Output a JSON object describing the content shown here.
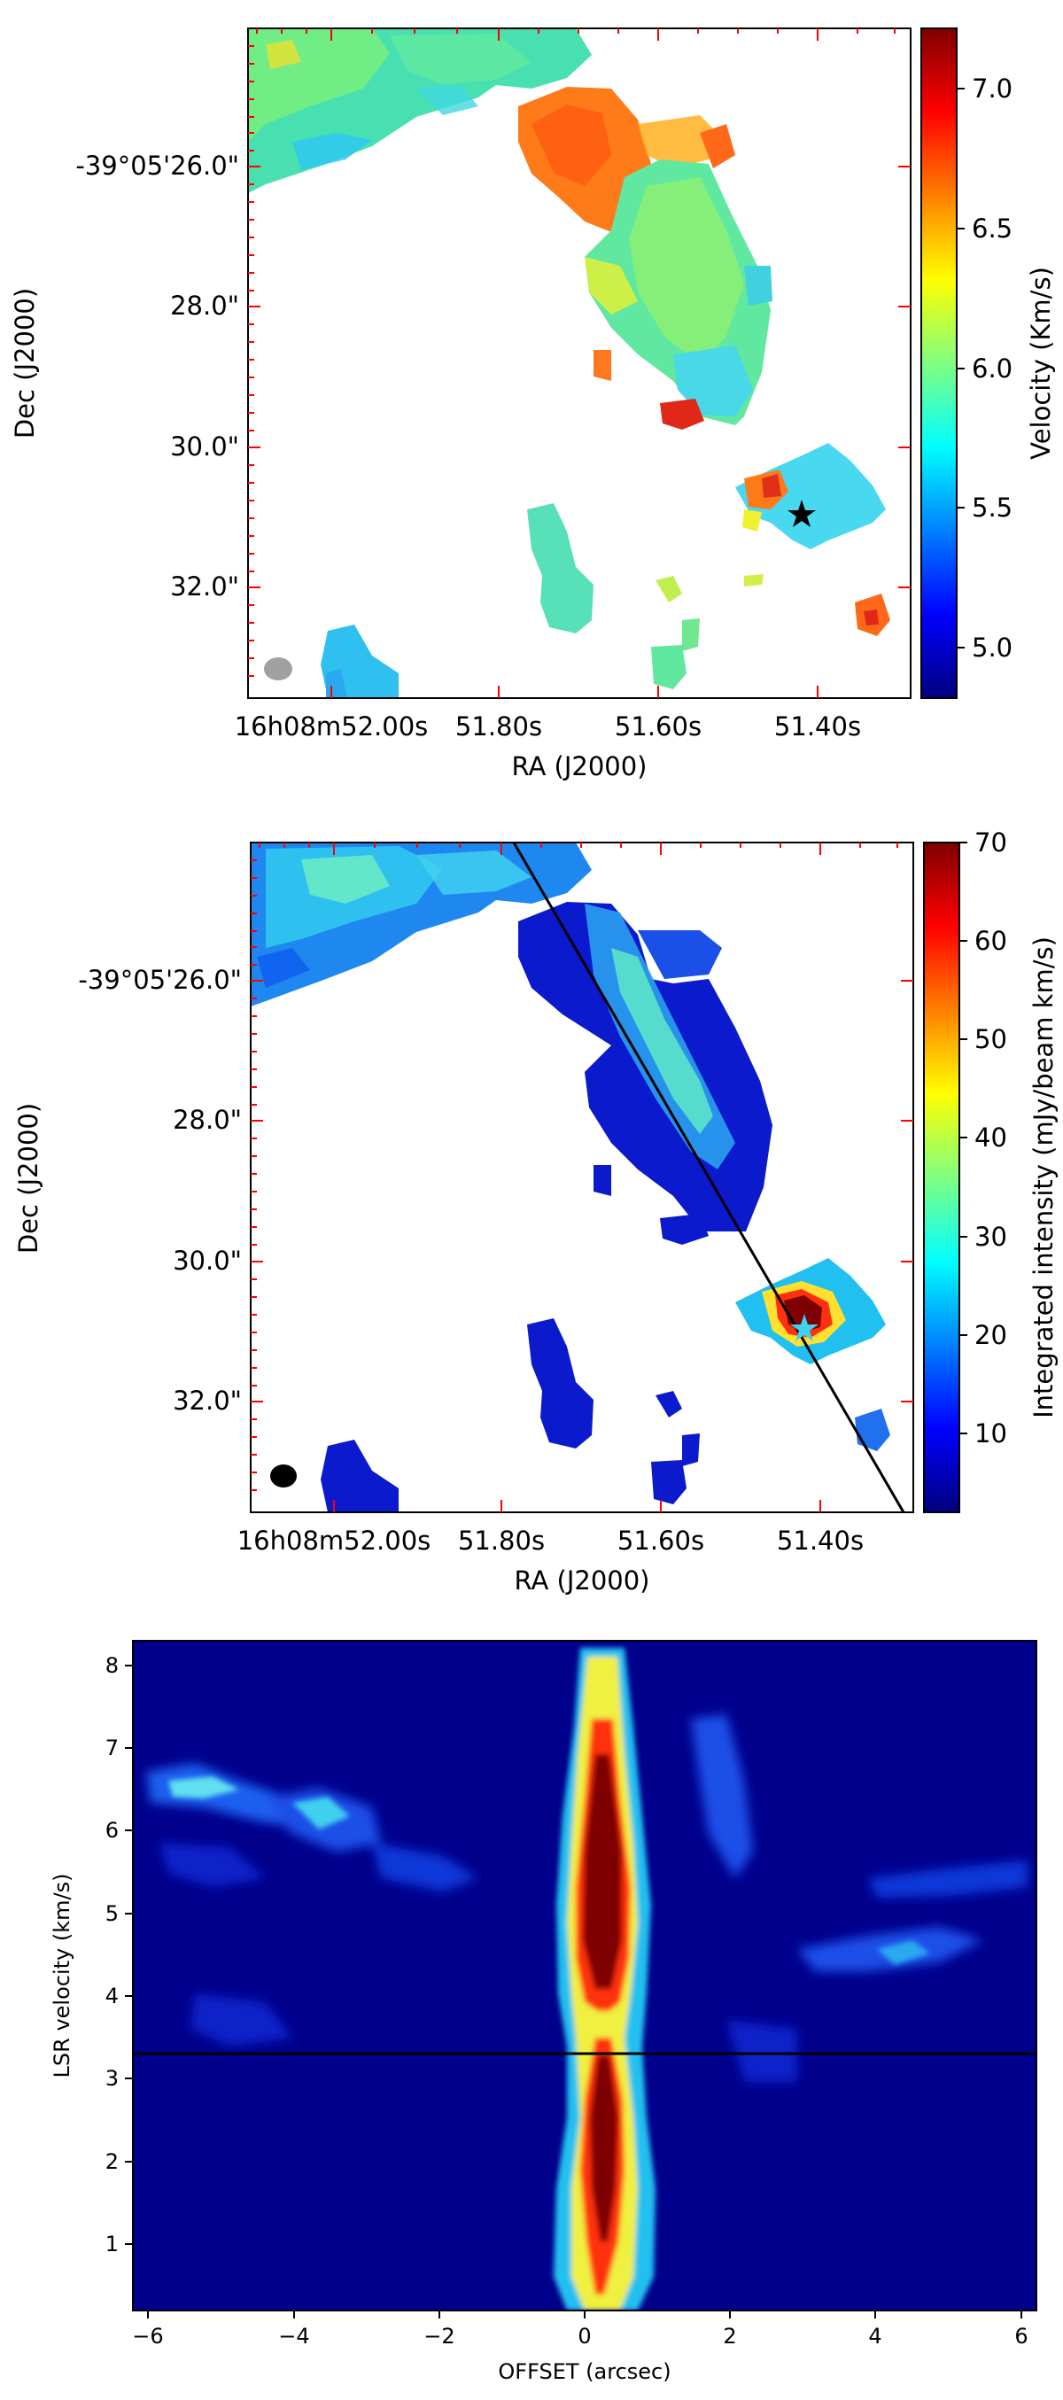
{
  "chart_data": [
    {
      "type": "heatmap",
      "subtype": "velocity-map",
      "xlabel": "RA (J2000)",
      "ylabel": "Dec (J2000)",
      "x_ticks": [
        "16h08m52.00s",
        "51.80s",
        "51.60s",
        "51.40s"
      ],
      "y_ticks": [
        "-39°05'26.0\"",
        "28.0\"",
        "30.0\"",
        "32.0\""
      ],
      "colorbar": {
        "label": "Velocity (Km/s)",
        "min": 4.8,
        "max": 7.2,
        "ticks": [
          "5.0",
          "5.5",
          "6.0",
          "6.5",
          "7.0"
        ],
        "colormap": "jet"
      },
      "star_marker": {
        "color": "#000000"
      },
      "beam": {
        "color": "#a0a0a0"
      }
    },
    {
      "type": "heatmap",
      "subtype": "integrated-intensity-map",
      "xlabel": "RA (J2000)",
      "ylabel": "Dec (J2000)",
      "x_ticks": [
        "16h08m52.00s",
        "51.80s",
        "51.60s",
        "51.40s"
      ],
      "y_ticks": [
        "-39°05'26.0\"",
        "28.0\"",
        "30.0\"",
        "32.0\""
      ],
      "colorbar": {
        "label": "Integrated intensity (mJy/beam km/s)",
        "min": 2,
        "max": 70,
        "ticks": [
          "10",
          "20",
          "30",
          "40",
          "50",
          "60",
          "70"
        ],
        "colormap": "jet"
      },
      "star_marker": {
        "color": "#40d0f0"
      },
      "cut_line": true,
      "beam": {
        "color": "#000000"
      }
    },
    {
      "type": "heatmap",
      "subtype": "position-velocity-diagram",
      "xlabel": "OFFSET (arcsec)",
      "ylabel": "LSR velocity (km/s)",
      "xlim": [
        -6.2,
        6.2
      ],
      "ylim": [
        0.2,
        8.3
      ],
      "x_ticks": [
        "−6",
        "−4",
        "−2",
        "0",
        "2",
        "4",
        "6"
      ],
      "y_ticks": [
        "1",
        "2",
        "3",
        "4",
        "5",
        "6",
        "7",
        "8"
      ],
      "reference_line_velocity": 3.6,
      "colormap": "jet"
    }
  ]
}
